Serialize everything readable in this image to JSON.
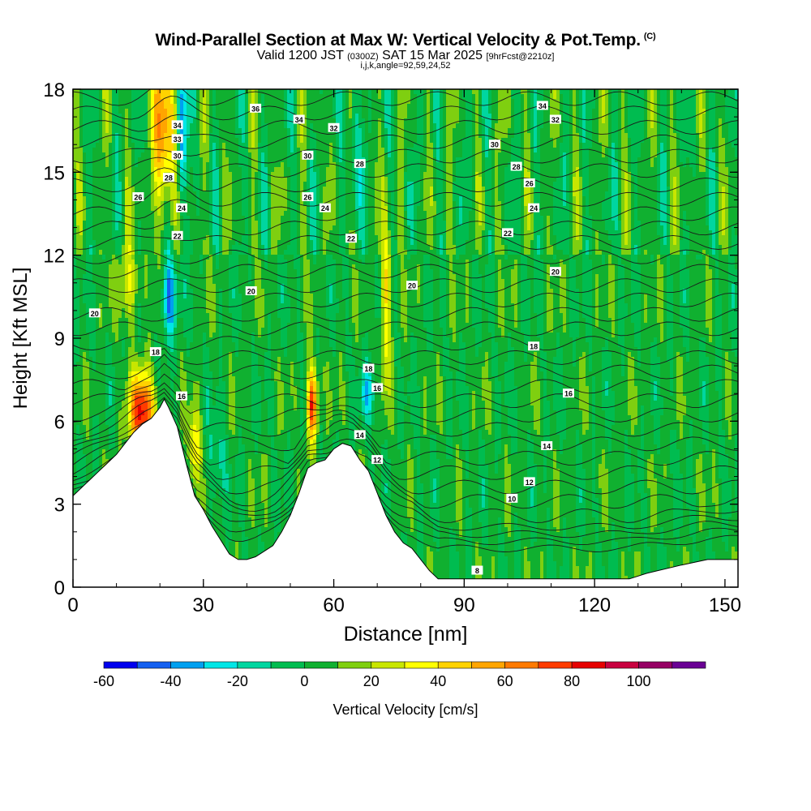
{
  "title": {
    "main": "Wind-Parallel Section at Max W: Vertical Velocity & Pot.Temp.",
    "copyright": "(C)",
    "valid_prefix": "Valid 1200 JST",
    "valid_utc": "(0300Z)",
    "valid_date": "SAT 15 Mar 2025",
    "forecast": "[9hrFcst@2210z]",
    "indices": "i,j,k,angle=92,59,24,52"
  },
  "chart_data": {
    "type": "heatmap",
    "xlabel": "Distance [nm]",
    "ylabel": "Height [Kft MSL]",
    "xlim": [
      0,
      153
    ],
    "ylim": [
      0,
      18
    ],
    "x_ticks": [
      0,
      30,
      60,
      90,
      120,
      150
    ],
    "y_ticks": [
      0,
      3,
      6,
      9,
      12,
      15,
      18
    ],
    "terrain_kft": [
      [
        0,
        3.3
      ],
      [
        2,
        3.6
      ],
      [
        4,
        3.9
      ],
      [
        6,
        4.2
      ],
      [
        8,
        4.5
      ],
      [
        10,
        4.8
      ],
      [
        12,
        5.2
      ],
      [
        14,
        5.6
      ],
      [
        16,
        5.9
      ],
      [
        18,
        6.1
      ],
      [
        20,
        6.5
      ],
      [
        21,
        6.8
      ],
      [
        22,
        6.5
      ],
      [
        24,
        5.8
      ],
      [
        26,
        4.5
      ],
      [
        28,
        3.3
      ],
      [
        30,
        2.8
      ],
      [
        32,
        2.2
      ],
      [
        34,
        1.7
      ],
      [
        36,
        1.2
      ],
      [
        38,
        1.0
      ],
      [
        40,
        1.0
      ],
      [
        42,
        1.1
      ],
      [
        44,
        1.3
      ],
      [
        46,
        1.5
      ],
      [
        48,
        2.0
      ],
      [
        50,
        2.6
      ],
      [
        52,
        3.4
      ],
      [
        54,
        4.3
      ],
      [
        56,
        4.5
      ],
      [
        58,
        4.6
      ],
      [
        60,
        5.0
      ],
      [
        62,
        5.2
      ],
      [
        64,
        5.1
      ],
      [
        66,
        4.6
      ],
      [
        68,
        4.2
      ],
      [
        70,
        3.4
      ],
      [
        72,
        2.6
      ],
      [
        74,
        2.0
      ],
      [
        76,
        1.6
      ],
      [
        78,
        1.4
      ],
      [
        80,
        1.0
      ],
      [
        82,
        0.6
      ],
      [
        84,
        0.3
      ],
      [
        88,
        0.3
      ],
      [
        100,
        0.3
      ],
      [
        110,
        0.3
      ],
      [
        120,
        0.3
      ],
      [
        128,
        0.3
      ],
      [
        132,
        0.5
      ],
      [
        140,
        0.8
      ],
      [
        146,
        1.0
      ],
      [
        153,
        1.0
      ]
    ],
    "updrafts": [
      {
        "x": 16,
        "y": 6.3,
        "w": 3,
        "h": 1.4,
        "peak_cm_s": 80
      },
      {
        "x": 21,
        "y": 16.5,
        "w": 2.5,
        "h": 3,
        "peak_cm_s": 60
      },
      {
        "x": 55,
        "y": 6.6,
        "w": 1.2,
        "h": 1.3,
        "peak_cm_s": 80
      },
      {
        "x": 72,
        "y": 10.5,
        "w": 1.2,
        "h": 3,
        "peak_cm_s": 40
      },
      {
        "x": 28,
        "y": 5.0,
        "w": 1.3,
        "h": 1.5,
        "peak_cm_s": 40
      },
      {
        "x": 13,
        "y": 11.0,
        "w": 2.5,
        "h": 1.4,
        "peak_cm_s": 30
      }
    ],
    "downdrafts": [
      {
        "x": 22,
        "y": 10.5,
        "w": 1.5,
        "h": 1.5,
        "peak_cm_s": -50
      },
      {
        "x": 25,
        "y": 16.5,
        "w": 1.2,
        "h": 3,
        "peak_cm_s": -40
      },
      {
        "x": 68,
        "y": 7.0,
        "w": 1.6,
        "h": 1.0,
        "peak_cm_s": -30
      },
      {
        "x": 65,
        "y": 16.5,
        "w": 1.5,
        "h": 3,
        "peak_cm_s": -20
      },
      {
        "x": 33,
        "y": 4.5,
        "w": 2,
        "h": 1.5,
        "peak_cm_s": -20
      }
    ],
    "contour_labels": [
      {
        "text": "36",
        "x": 42,
        "y": 17.3
      },
      {
        "text": "34",
        "x": 24,
        "y": 16.7
      },
      {
        "text": "34",
        "x": 52,
        "y": 16.9
      },
      {
        "text": "34",
        "x": 108,
        "y": 17.4
      },
      {
        "text": "33",
        "x": 24,
        "y": 16.2
      },
      {
        "text": "32",
        "x": 60,
        "y": 16.6
      },
      {
        "text": "32",
        "x": 111,
        "y": 16.9
      },
      {
        "text": "30",
        "x": 24,
        "y": 15.6
      },
      {
        "text": "30",
        "x": 54,
        "y": 15.6
      },
      {
        "text": "30",
        "x": 97,
        "y": 16.0
      },
      {
        "text": "28",
        "x": 22,
        "y": 14.8
      },
      {
        "text": "28",
        "x": 66,
        "y": 15.3
      },
      {
        "text": "28",
        "x": 102,
        "y": 15.2
      },
      {
        "text": "26",
        "x": 15,
        "y": 14.1
      },
      {
        "text": "26",
        "x": 54,
        "y": 14.1
      },
      {
        "text": "26",
        "x": 105,
        "y": 14.6
      },
      {
        "text": "24",
        "x": 25,
        "y": 13.7
      },
      {
        "text": "24",
        "x": 58,
        "y": 13.7
      },
      {
        "text": "24",
        "x": 106,
        "y": 13.7
      },
      {
        "text": "22",
        "x": 24,
        "y": 12.7
      },
      {
        "text": "22",
        "x": 64,
        "y": 12.6
      },
      {
        "text": "22",
        "x": 100,
        "y": 12.8
      },
      {
        "text": "20",
        "x": 5,
        "y": 9.9
      },
      {
        "text": "20",
        "x": 41,
        "y": 10.7
      },
      {
        "text": "20",
        "x": 78,
        "y": 10.9
      },
      {
        "text": "20",
        "x": 111,
        "y": 11.4
      },
      {
        "text": "18",
        "x": 19,
        "y": 8.5
      },
      {
        "text": "18",
        "x": 68,
        "y": 7.9
      },
      {
        "text": "18",
        "x": 106,
        "y": 8.7
      },
      {
        "text": "16",
        "x": 25,
        "y": 6.9
      },
      {
        "text": "16",
        "x": 70,
        "y": 7.2
      },
      {
        "text": "16",
        "x": 114,
        "y": 7.0
      },
      {
        "text": "14",
        "x": 66,
        "y": 5.5
      },
      {
        "text": "14",
        "x": 109,
        "y": 5.1
      },
      {
        "text": "12",
        "x": 70,
        "y": 4.6
      },
      {
        "text": "12",
        "x": 105,
        "y": 3.8
      },
      {
        "text": "10",
        "x": 101,
        "y": 3.2
      },
      {
        "text": "8",
        "x": 93,
        "y": 0.6
      }
    ],
    "colorbar": {
      "label": "Vertical Velocity [cm/s]",
      "ticks": [
        -60,
        -40,
        -20,
        0,
        20,
        40,
        60,
        80,
        100
      ],
      "bins": [
        {
          "from": -60,
          "to": -50,
          "color": "#0000ee"
        },
        {
          "from": -50,
          "to": -40,
          "color": "#1460f0"
        },
        {
          "from": -40,
          "to": -30,
          "color": "#00a0f0"
        },
        {
          "from": -30,
          "to": -20,
          "color": "#00e6e6"
        },
        {
          "from": -20,
          "to": -10,
          "color": "#00d6a0"
        },
        {
          "from": -10,
          "to": 0,
          "color": "#00bc50"
        },
        {
          "from": 0,
          "to": 10,
          "color": "#10b030"
        },
        {
          "from": 10,
          "to": 20,
          "color": "#7fcf10"
        },
        {
          "from": 20,
          "to": 30,
          "color": "#c8e600"
        },
        {
          "from": 30,
          "to": 40,
          "color": "#ffff00"
        },
        {
          "from": 40,
          "to": 50,
          "color": "#ffd200"
        },
        {
          "from": 50,
          "to": 60,
          "color": "#ffa500"
        },
        {
          "from": 60,
          "to": 70,
          "color": "#ff7a00"
        },
        {
          "from": 70,
          "to": 80,
          "color": "#ff3c00"
        },
        {
          "from": 80,
          "to": 90,
          "color": "#e60000"
        },
        {
          "from": 90,
          "to": 100,
          "color": "#c80040"
        },
        {
          "from": 100,
          "to": 110,
          "color": "#960064"
        },
        {
          "from": 110,
          "to": 120,
          "color": "#6a0094"
        }
      ]
    }
  }
}
